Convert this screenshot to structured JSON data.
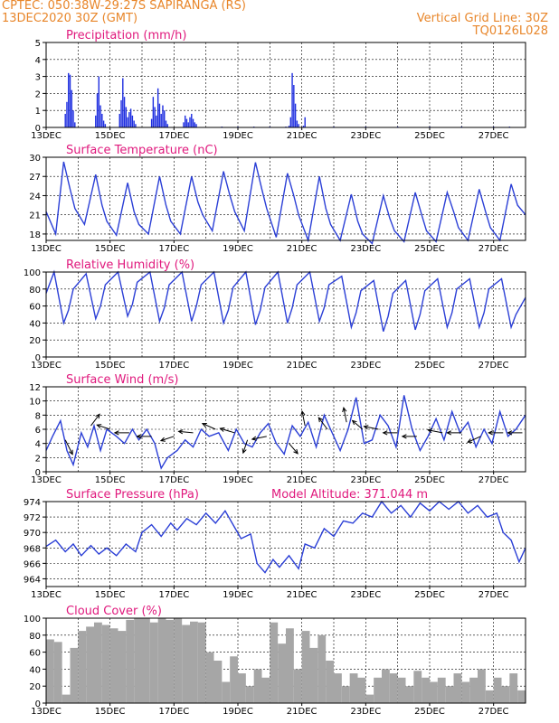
{
  "header": {
    "line1_left": "CPTEC:   050:38W-29:27S   SAPIRANGA (RS)",
    "line2_left": "13DEC2020 30Z (GMT)",
    "line2_right": "Vertical Grid Line: 30Z",
    "line3_right": "TQ0126L028"
  },
  "colors": {
    "accent_text": "#e8862a",
    "panel_title": "#e0197d",
    "series_line": "#2b3fd6",
    "cloud_fill": "#a6a6a6",
    "precip_bars": "#1f2fe0"
  },
  "x_axis": {
    "range_days": [
      13.0,
      28.0
    ],
    "tick_days": [
      13,
      15,
      17,
      19,
      21,
      23,
      25,
      27
    ],
    "tick_labels": [
      "13DEC",
      "15DEC",
      "17DEC",
      "19DEC",
      "21DEC",
      "23DEC",
      "25DEC",
      "27DEC"
    ],
    "grid_days": [
      13,
      14,
      15,
      16,
      17,
      18,
      19,
      20,
      21,
      22,
      23,
      24,
      25,
      26,
      27,
      28
    ]
  },
  "chart_data": [
    {
      "type": "bar",
      "title": "Precipitation (mm/h)",
      "ylim": [
        0,
        5
      ],
      "yticks": [
        0,
        1,
        2,
        3,
        4,
        5
      ],
      "grid": true,
      "x": [
        13.6,
        13.65,
        13.7,
        13.75,
        13.8,
        13.85,
        13.9,
        14.55,
        14.6,
        14.65,
        14.7,
        14.75,
        14.8,
        14.85,
        15.3,
        15.35,
        15.4,
        15.45,
        15.5,
        15.55,
        15.6,
        15.65,
        15.7,
        15.75,
        15.8,
        16.3,
        16.35,
        16.4,
        16.45,
        16.5,
        16.55,
        16.6,
        16.65,
        16.7,
        16.75,
        16.8,
        17.3,
        17.35,
        17.4,
        17.45,
        17.5,
        17.55,
        17.6,
        17.65,
        17.7,
        18.5,
        19.0,
        19.5,
        20.0,
        20.5,
        20.6,
        20.65,
        20.7,
        20.75,
        20.8,
        20.85,
        20.9,
        21.05,
        21.1,
        22.0,
        23.0,
        24.0,
        25.0,
        26.0,
        27.0,
        27.5
      ],
      "values": [
        0.8,
        1.5,
        3.2,
        3.1,
        2.2,
        1.0,
        0.3,
        0.7,
        2.0,
        3.0,
        1.3,
        0.8,
        0.4,
        0.2,
        0.8,
        1.6,
        2.9,
        1.8,
        1.2,
        0.6,
        0.9,
        1.1,
        0.7,
        0.4,
        0.2,
        0.5,
        1.8,
        1.2,
        0.7,
        2.3,
        1.4,
        0.8,
        1.3,
        1.0,
        0.4,
        0.2,
        0.3,
        0.7,
        0.5,
        0.3,
        0.6,
        0.8,
        0.5,
        0.3,
        0.2,
        0.05,
        0.05,
        0.05,
        0.05,
        0.05,
        0.1,
        0.6,
        3.2,
        2.5,
        1.4,
        0.4,
        0.2,
        0.1,
        0.6,
        0.05,
        0.05,
        0.05,
        0.05,
        0.05,
        0.05,
        0.05
      ]
    },
    {
      "type": "line",
      "title": "Surface Temperature (nC)",
      "ylim": [
        17,
        30
      ],
      "yticks": [
        18,
        21,
        24,
        27,
        30
      ],
      "grid": true,
      "x": [
        13.0,
        13.3,
        13.55,
        13.75,
        13.9,
        14.2,
        14.55,
        14.75,
        14.9,
        15.2,
        15.55,
        15.75,
        15.9,
        16.2,
        16.55,
        16.75,
        16.9,
        17.2,
        17.55,
        17.75,
        17.9,
        18.2,
        18.55,
        18.75,
        18.9,
        19.2,
        19.55,
        19.75,
        19.9,
        20.2,
        20.55,
        20.75,
        20.9,
        21.2,
        21.55,
        21.75,
        21.9,
        22.2,
        22.55,
        22.75,
        22.9,
        23.2,
        23.55,
        23.75,
        23.9,
        24.2,
        24.55,
        24.75,
        24.9,
        25.2,
        25.55,
        25.75,
        25.9,
        26.2,
        26.55,
        26.75,
        26.9,
        27.2,
        27.55,
        27.75,
        28.0
      ],
      "values": [
        21.5,
        18.0,
        29.3,
        25.0,
        22.0,
        19.5,
        27.3,
        22.5,
        20.0,
        17.8,
        26.0,
        21.5,
        19.5,
        18.0,
        27.0,
        22.5,
        20.0,
        18.0,
        27.0,
        23.0,
        21.0,
        18.5,
        27.8,
        24.0,
        21.5,
        18.5,
        29.2,
        25.0,
        22.0,
        17.5,
        27.5,
        24.0,
        21.0,
        17.0,
        27.0,
        22.0,
        19.5,
        17.0,
        24.2,
        20.0,
        18.0,
        16.5,
        24.0,
        20.5,
        18.5,
        16.8,
        24.5,
        21.0,
        18.5,
        16.8,
        24.5,
        21.5,
        19.0,
        17.0,
        25.0,
        21.5,
        19.0,
        17.0,
        25.8,
        22.5,
        21.0
      ]
    },
    {
      "type": "line",
      "title": "Relative Humidity (%)",
      "ylim": [
        0,
        100
      ],
      "yticks": [
        0,
        20,
        40,
        60,
        80,
        100
      ],
      "grid": true,
      "x": [
        13.0,
        13.25,
        13.55,
        13.7,
        13.85,
        14.25,
        14.55,
        14.7,
        14.85,
        15.25,
        15.55,
        15.7,
        15.85,
        16.25,
        16.55,
        16.7,
        16.85,
        17.25,
        17.55,
        17.7,
        17.85,
        18.25,
        18.55,
        18.7,
        18.85,
        19.25,
        19.55,
        19.7,
        19.85,
        20.25,
        20.55,
        20.7,
        20.85,
        21.25,
        21.55,
        21.7,
        21.85,
        22.25,
        22.55,
        22.7,
        22.85,
        23.25,
        23.55,
        23.7,
        23.85,
        24.25,
        24.55,
        24.7,
        24.85,
        25.25,
        25.55,
        25.7,
        25.85,
        26.25,
        26.55,
        26.7,
        26.85,
        27.25,
        27.55,
        27.7,
        28.0
      ],
      "values": [
        75,
        100,
        40,
        55,
        80,
        98,
        45,
        60,
        85,
        100,
        48,
        62,
        88,
        100,
        42,
        58,
        85,
        100,
        42,
        60,
        85,
        100,
        40,
        55,
        82,
        100,
        38,
        55,
        82,
        100,
        40,
        58,
        85,
        100,
        42,
        58,
        85,
        95,
        35,
        52,
        78,
        90,
        30,
        48,
        75,
        90,
        32,
        50,
        78,
        92,
        35,
        52,
        80,
        92,
        35,
        52,
        80,
        92,
        35,
        50,
        70
      ]
    },
    {
      "type": "line",
      "title": "Surface Wind (m/s)",
      "ylim": [
        0,
        12
      ],
      "yticks": [
        0,
        2,
        4,
        6,
        8,
        10,
        12
      ],
      "grid": true,
      "x": [
        13.0,
        13.2,
        13.45,
        13.65,
        13.85,
        14.1,
        14.3,
        14.5,
        14.7,
        14.9,
        15.2,
        15.45,
        15.7,
        15.9,
        16.15,
        16.4,
        16.6,
        16.8,
        17.1,
        17.35,
        17.6,
        17.85,
        18.1,
        18.4,
        18.7,
        18.95,
        19.2,
        19.45,
        19.7,
        19.95,
        20.2,
        20.45,
        20.7,
        20.95,
        21.2,
        21.45,
        21.7,
        21.95,
        22.2,
        22.45,
        22.7,
        22.95,
        23.2,
        23.45,
        23.7,
        23.95,
        24.2,
        24.45,
        24.7,
        24.95,
        25.2,
        25.45,
        25.7,
        25.95,
        26.2,
        26.45,
        26.7,
        26.95,
        27.2,
        27.45,
        27.7,
        28.0
      ],
      "values": [
        3.0,
        5.0,
        7.2,
        3.0,
        1.0,
        5.5,
        3.5,
        6.5,
        3.0,
        6.0,
        5.0,
        4.0,
        6.0,
        4.5,
        6.0,
        4.0,
        0.5,
        2.0,
        3.0,
        4.5,
        3.5,
        6.0,
        5.0,
        5.5,
        3.0,
        6.0,
        4.0,
        3.5,
        5.5,
        6.8,
        4.0,
        2.5,
        6.5,
        5.0,
        7.0,
        3.5,
        8.0,
        5.5,
        3.0,
        6.0,
        10.5,
        4.0,
        4.5,
        8.0,
        6.5,
        3.5,
        10.8,
        6.0,
        3.0,
        5.0,
        7.5,
        4.5,
        8.5,
        5.5,
        7.0,
        3.5,
        6.0,
        4.0,
        8.5,
        5.0,
        6.0,
        8.0
      ],
      "vectors": [
        {
          "day": 13.6,
          "speed": 4.5,
          "dx": 0.5,
          "dy": -1
        },
        {
          "day": 14.4,
          "speed": 6.5,
          "dx": 0.6,
          "dy": 0.8
        },
        {
          "day": 15.0,
          "speed": 6.0,
          "dx": -0.9,
          "dy": 0.3
        },
        {
          "day": 15.6,
          "speed": 5.5,
          "dx": -1,
          "dy": 0
        },
        {
          "day": 16.3,
          "speed": 5.0,
          "dx": -1,
          "dy": 0
        },
        {
          "day": 17.0,
          "speed": 5.0,
          "dx": -0.9,
          "dy": -0.3
        },
        {
          "day": 17.6,
          "speed": 5.5,
          "dx": -1,
          "dy": 0.1
        },
        {
          "day": 18.3,
          "speed": 6.0,
          "dx": -0.9,
          "dy": 0.4
        },
        {
          "day": 18.9,
          "speed": 5.5,
          "dx": -1,
          "dy": 0.3
        },
        {
          "day": 19.3,
          "speed": 4.5,
          "dx": -0.3,
          "dy": -0.9
        },
        {
          "day": 19.9,
          "speed": 5.0,
          "dx": -1,
          "dy": -0.2
        },
        {
          "day": 20.6,
          "speed": 4.0,
          "dx": 0.6,
          "dy": -0.7
        },
        {
          "day": 21.1,
          "speed": 6.5,
          "dx": -0.2,
          "dy": 1
        },
        {
          "day": 21.8,
          "speed": 6.0,
          "dx": -0.6,
          "dy": 0.8
        },
        {
          "day": 22.4,
          "speed": 7.0,
          "dx": -0.2,
          "dy": 1
        },
        {
          "day": 22.9,
          "speed": 6.0,
          "dx": -0.7,
          "dy": 0.6
        },
        {
          "day": 23.4,
          "speed": 6.0,
          "dx": -1,
          "dy": 0.2
        },
        {
          "day": 24.0,
          "speed": 5.5,
          "dx": -1,
          "dy": 0
        },
        {
          "day": 24.6,
          "speed": 5.0,
          "dx": -1,
          "dy": 0
        },
        {
          "day": 25.4,
          "speed": 5.5,
          "dx": -1,
          "dy": 0.2
        },
        {
          "day": 26.0,
          "speed": 5.5,
          "dx": -1,
          "dy": 0
        },
        {
          "day": 26.6,
          "speed": 5.0,
          "dx": -0.9,
          "dy": -0.4
        },
        {
          "day": 27.3,
          "speed": 5.5,
          "dx": -1,
          "dy": 0
        },
        {
          "day": 27.9,
          "speed": 5.5,
          "dx": -1,
          "dy": 0
        }
      ]
    },
    {
      "type": "line",
      "title": "Surface Pressure (hPa)",
      "annotation": "Model Altitude: 371.044  m",
      "ylim": [
        963,
        974
      ],
      "yticks": [
        964,
        966,
        968,
        970,
        972,
        974
      ],
      "grid": true,
      "x": [
        13.0,
        13.3,
        13.6,
        13.85,
        14.1,
        14.4,
        14.65,
        14.9,
        15.2,
        15.5,
        15.8,
        16.0,
        16.3,
        16.6,
        16.9,
        17.1,
        17.4,
        17.7,
        18.0,
        18.3,
        18.6,
        18.85,
        19.1,
        19.4,
        19.6,
        19.85,
        20.1,
        20.3,
        20.6,
        20.9,
        21.1,
        21.4,
        21.7,
        22.0,
        22.3,
        22.6,
        22.9,
        23.2,
        23.5,
        23.8,
        24.1,
        24.4,
        24.7,
        25.0,
        25.3,
        25.6,
        25.9,
        26.2,
        26.5,
        26.8,
        27.1,
        27.3,
        27.55,
        27.8,
        28.0
      ],
      "values": [
        968.2,
        969.0,
        967.5,
        968.5,
        967.0,
        968.3,
        967.2,
        968.0,
        967.0,
        968.5,
        967.5,
        970.0,
        971.0,
        969.5,
        971.2,
        970.3,
        971.8,
        971.0,
        972.5,
        971.2,
        972.8,
        971.0,
        969.2,
        969.8,
        966.0,
        964.8,
        966.5,
        965.5,
        967.0,
        965.3,
        968.5,
        968.0,
        970.5,
        969.5,
        971.5,
        971.2,
        972.5,
        972.0,
        974.0,
        972.5,
        973.5,
        972.0,
        973.8,
        972.8,
        974.0,
        973.0,
        974.0,
        972.5,
        973.5,
        972.0,
        972.5,
        970.0,
        969.0,
        966.2,
        968.0
      ]
    },
    {
      "type": "bar",
      "title": "Cloud Cover (%)",
      "ylim": [
        0,
        100
      ],
      "yticks": [
        0,
        20,
        40,
        60,
        80,
        100
      ],
      "grid": true,
      "x": [
        13.0,
        13.25,
        13.5,
        13.75,
        14.0,
        14.25,
        14.5,
        14.75,
        15.0,
        15.25,
        15.5,
        15.75,
        16.0,
        16.25,
        16.5,
        16.75,
        17.0,
        17.25,
        17.5,
        17.75,
        18.0,
        18.25,
        18.5,
        18.75,
        19.0,
        19.25,
        19.5,
        19.75,
        20.0,
        20.25,
        20.5,
        20.75,
        21.0,
        21.25,
        21.5,
        21.75,
        22.0,
        22.25,
        22.5,
        22.75,
        23.0,
        23.25,
        23.5,
        23.75,
        24.0,
        24.25,
        24.5,
        24.75,
        25.0,
        25.25,
        25.5,
        25.75,
        26.0,
        26.25,
        26.5,
        26.75,
        27.0,
        27.25,
        27.5,
        27.75
      ],
      "values": [
        75,
        72,
        10,
        65,
        85,
        90,
        95,
        92,
        88,
        85,
        98,
        100,
        100,
        95,
        100,
        98,
        100,
        92,
        96,
        95,
        60,
        50,
        25,
        55,
        35,
        20,
        40,
        30,
        95,
        70,
        88,
        40,
        85,
        65,
        80,
        50,
        35,
        20,
        35,
        30,
        10,
        30,
        40,
        35,
        30,
        20,
        38,
        30,
        25,
        30,
        20,
        35,
        25,
        30,
        40,
        15,
        30,
        20,
        35,
        15
      ]
    }
  ]
}
